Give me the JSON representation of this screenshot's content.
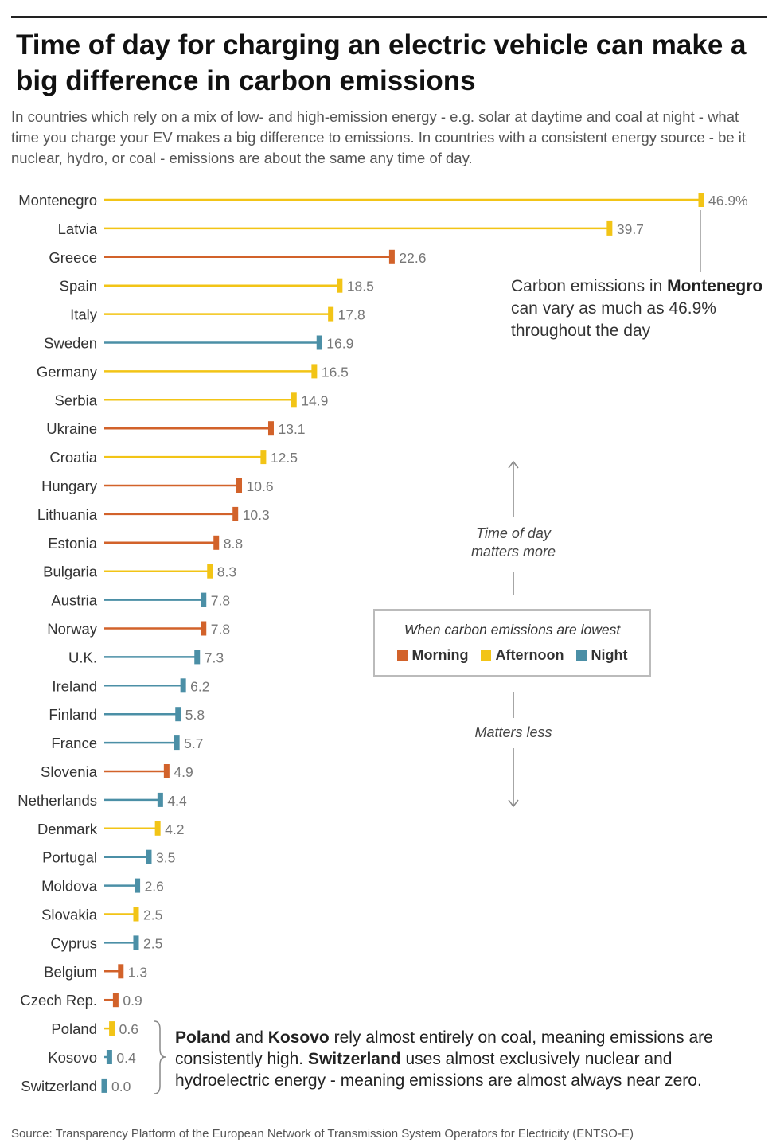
{
  "header": {
    "title": "Time of day for charging an electric vehicle can make a big difference in carbon emissions",
    "subtitle": "In countries which rely on a mix of low- and high-emission energy - e.g. solar at daytime and coal at night - what time you charge your EV makes a big difference to emissions. In countries with a consistent energy source - be it nuclear, hydro, or coal - emissions are about the same any time of day."
  },
  "colors": {
    "Morning": "#d2622a",
    "Afternoon": "#f2c416",
    "Night": "#4b8fa6"
  },
  "chart_data": {
    "type": "bar",
    "orientation": "horizontal",
    "value_unit": "%",
    "xlim": [
      0,
      46.9
    ],
    "grid": false,
    "categories": [
      "Montenegro",
      "Latvia",
      "Greece",
      "Spain",
      "Italy",
      "Sweden",
      "Germany",
      "Serbia",
      "Ukraine",
      "Croatia",
      "Hungary",
      "Lithuania",
      "Estonia",
      "Bulgaria",
      "Austria",
      "Norway",
      "U.K.",
      "Ireland",
      "Finland",
      "France",
      "Slovenia",
      "Netherlands",
      "Denmark",
      "Portugal",
      "Moldova",
      "Slovakia",
      "Cyprus",
      "Belgium",
      "Czech Rep.",
      "Poland",
      "Kosovo",
      "Switzerland"
    ],
    "values": [
      46.9,
      39.7,
      22.6,
      18.5,
      17.8,
      16.9,
      16.5,
      14.9,
      13.1,
      12.5,
      10.6,
      10.3,
      8.8,
      8.3,
      7.8,
      7.8,
      7.3,
      6.2,
      5.8,
      5.7,
      4.9,
      4.4,
      4.2,
      3.5,
      2.6,
      2.5,
      2.5,
      1.3,
      0.9,
      0.6,
      0.4,
      0.0
    ],
    "value_labels": [
      "46.9%",
      "39.7",
      "22.6",
      "18.5",
      "17.8",
      "16.9",
      "16.5",
      "14.9",
      "13.1",
      "12.5",
      "10.6",
      "10.3",
      "8.8",
      "8.3",
      "7.8",
      "7.8",
      "7.3",
      "6.2",
      "5.8",
      "5.7",
      "4.9",
      "4.4",
      "4.2",
      "3.5",
      "2.6",
      "2.5",
      "2.5",
      "1.3",
      "0.9",
      "0.6",
      "0.4",
      "0.0"
    ],
    "lowest_time": [
      "Afternoon",
      "Afternoon",
      "Morning",
      "Afternoon",
      "Afternoon",
      "Night",
      "Afternoon",
      "Afternoon",
      "Morning",
      "Afternoon",
      "Morning",
      "Morning",
      "Morning",
      "Afternoon",
      "Night",
      "Morning",
      "Night",
      "Night",
      "Night",
      "Night",
      "Morning",
      "Night",
      "Afternoon",
      "Night",
      "Night",
      "Afternoon",
      "Night",
      "Morning",
      "Morning",
      "Afternoon",
      "Night",
      "Night"
    ],
    "legend": {
      "title": "When carbon emissions are lowest",
      "items": [
        "Morning",
        "Afternoon",
        "Night"
      ],
      "placement": "center-right"
    }
  },
  "annotations": {
    "montenegro_pre": "Carbon emissions in ",
    "montenegro_bold": "Montenegro",
    "montenegro_post": "can vary as much as 46.9% throughout the day",
    "scale_more_line1": "Time of day",
    "scale_more_line2": "matters more",
    "scale_less": "Matters less",
    "note": {
      "poland": "Poland",
      "and": " and ",
      "kosovo": "Kosovo",
      "part1": " rely almost entirely on coal, meaning emissions are consistently high. ",
      "switzerland": "Switzerland",
      "part2": " uses almost exclusively nuclear and hydroelectric energy - meaning emissions are almost always near zero."
    }
  },
  "footer": {
    "source": "Source: Transparency Platform of the European Network of Transmission System Operators for Electricity (ENTSO-E)"
  }
}
